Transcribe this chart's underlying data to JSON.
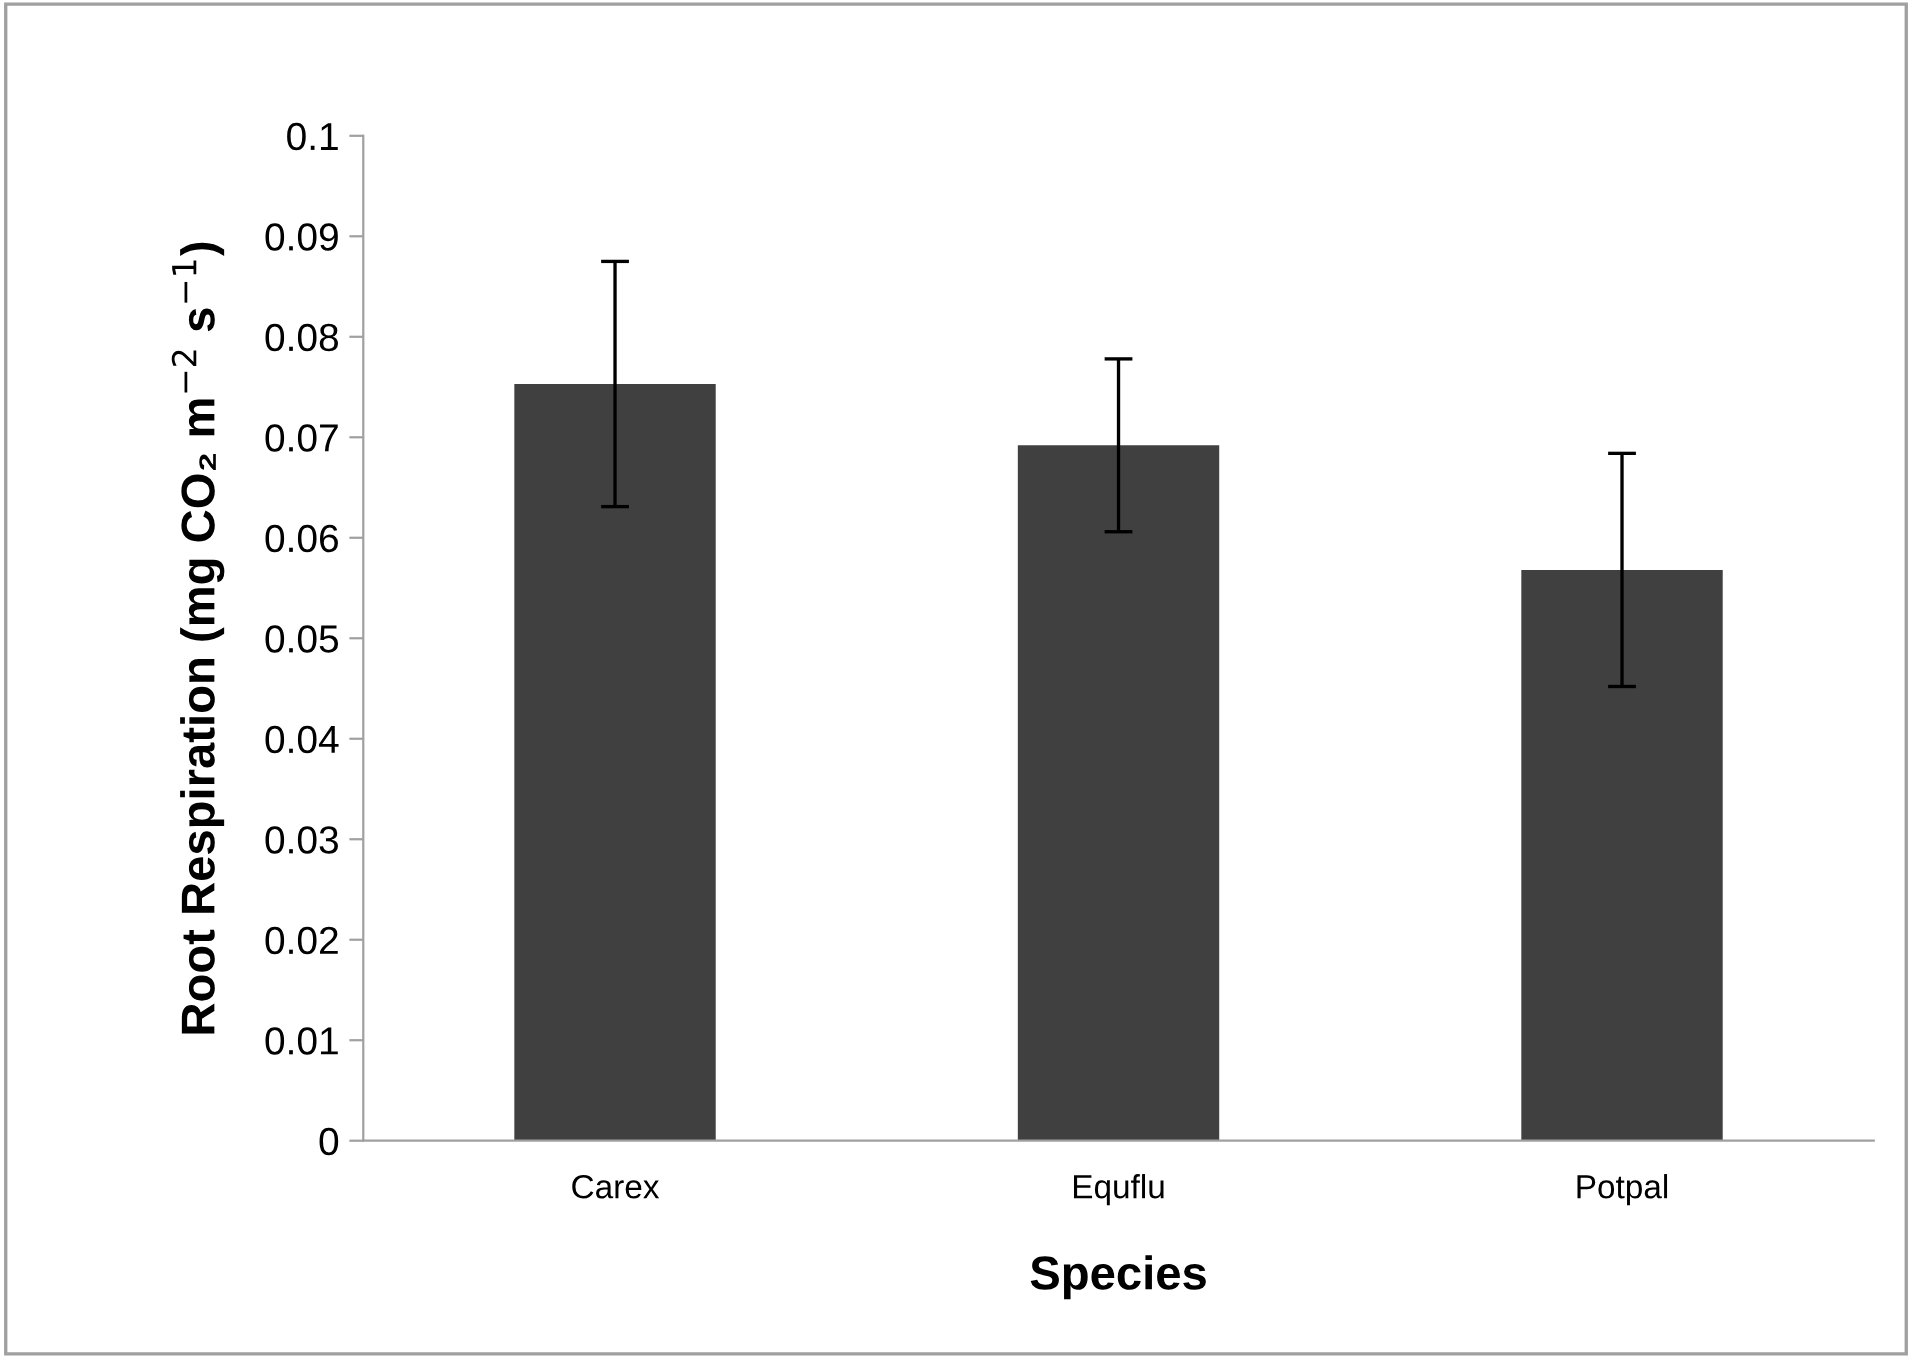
{
  "chart_data": {
    "type": "bar",
    "xlabel": "Species",
    "ylabel": "Root Respiration (mg CO₂ m$^{−2}$ s$^{−1}$)",
    "categories": [
      "Carex",
      "Equflu",
      "Potpal"
    ],
    "values": [
      0.0753,
      0.0692,
      0.0568
    ],
    "errors": [
      0.0122,
      0.0086,
      0.0116
    ],
    "color": "#404040",
    "ylim": [
      0,
      0.1
    ],
    "yticks": [
      {
        "value": 0,
        "label": "0"
      },
      0.01,
      0.02,
      0.03,
      0.04,
      0.05,
      0.06,
      0.07,
      0.08,
      0.09,
      0.1
    ],
    "grid": false,
    "legend": false
  }
}
